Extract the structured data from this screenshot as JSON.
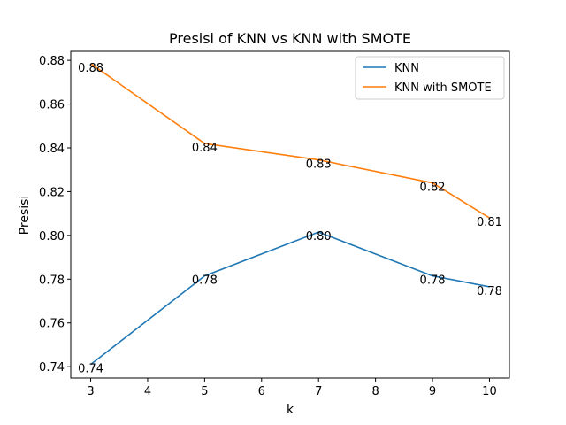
{
  "chart_data": {
    "type": "line",
    "title": "Presisi of KNN vs KNN with SMOTE",
    "xlabel": "k",
    "ylabel": "Presisi",
    "x": [
      3,
      5,
      7,
      9,
      10
    ],
    "xticks": [
      "3",
      "4",
      "5",
      "6",
      "7",
      "8",
      "9",
      "10"
    ],
    "yticks": [
      "0.74",
      "0.76",
      "0.78",
      "0.80",
      "0.82",
      "0.84",
      "0.86",
      "0.88"
    ],
    "xlim": [
      2.65,
      10.35
    ],
    "ylim": [
      0.7348,
      0.8841
    ],
    "grid": false,
    "legend_position": "upper right",
    "series": [
      {
        "name": "KNN",
        "color": "#1f77b4",
        "values": [
          0.741,
          0.7815,
          0.8015,
          0.7815,
          0.7765
        ],
        "labels": [
          "0.74",
          "0.78",
          "0.80",
          "0.78",
          "0.78"
        ]
      },
      {
        "name": "KNN with SMOTE",
        "color": "#ff7f0e",
        "values": [
          0.8785,
          0.842,
          0.8345,
          0.824,
          0.808
        ],
        "labels": [
          "0.88",
          "0.84",
          "0.83",
          "0.82",
          "0.81"
        ]
      }
    ]
  }
}
